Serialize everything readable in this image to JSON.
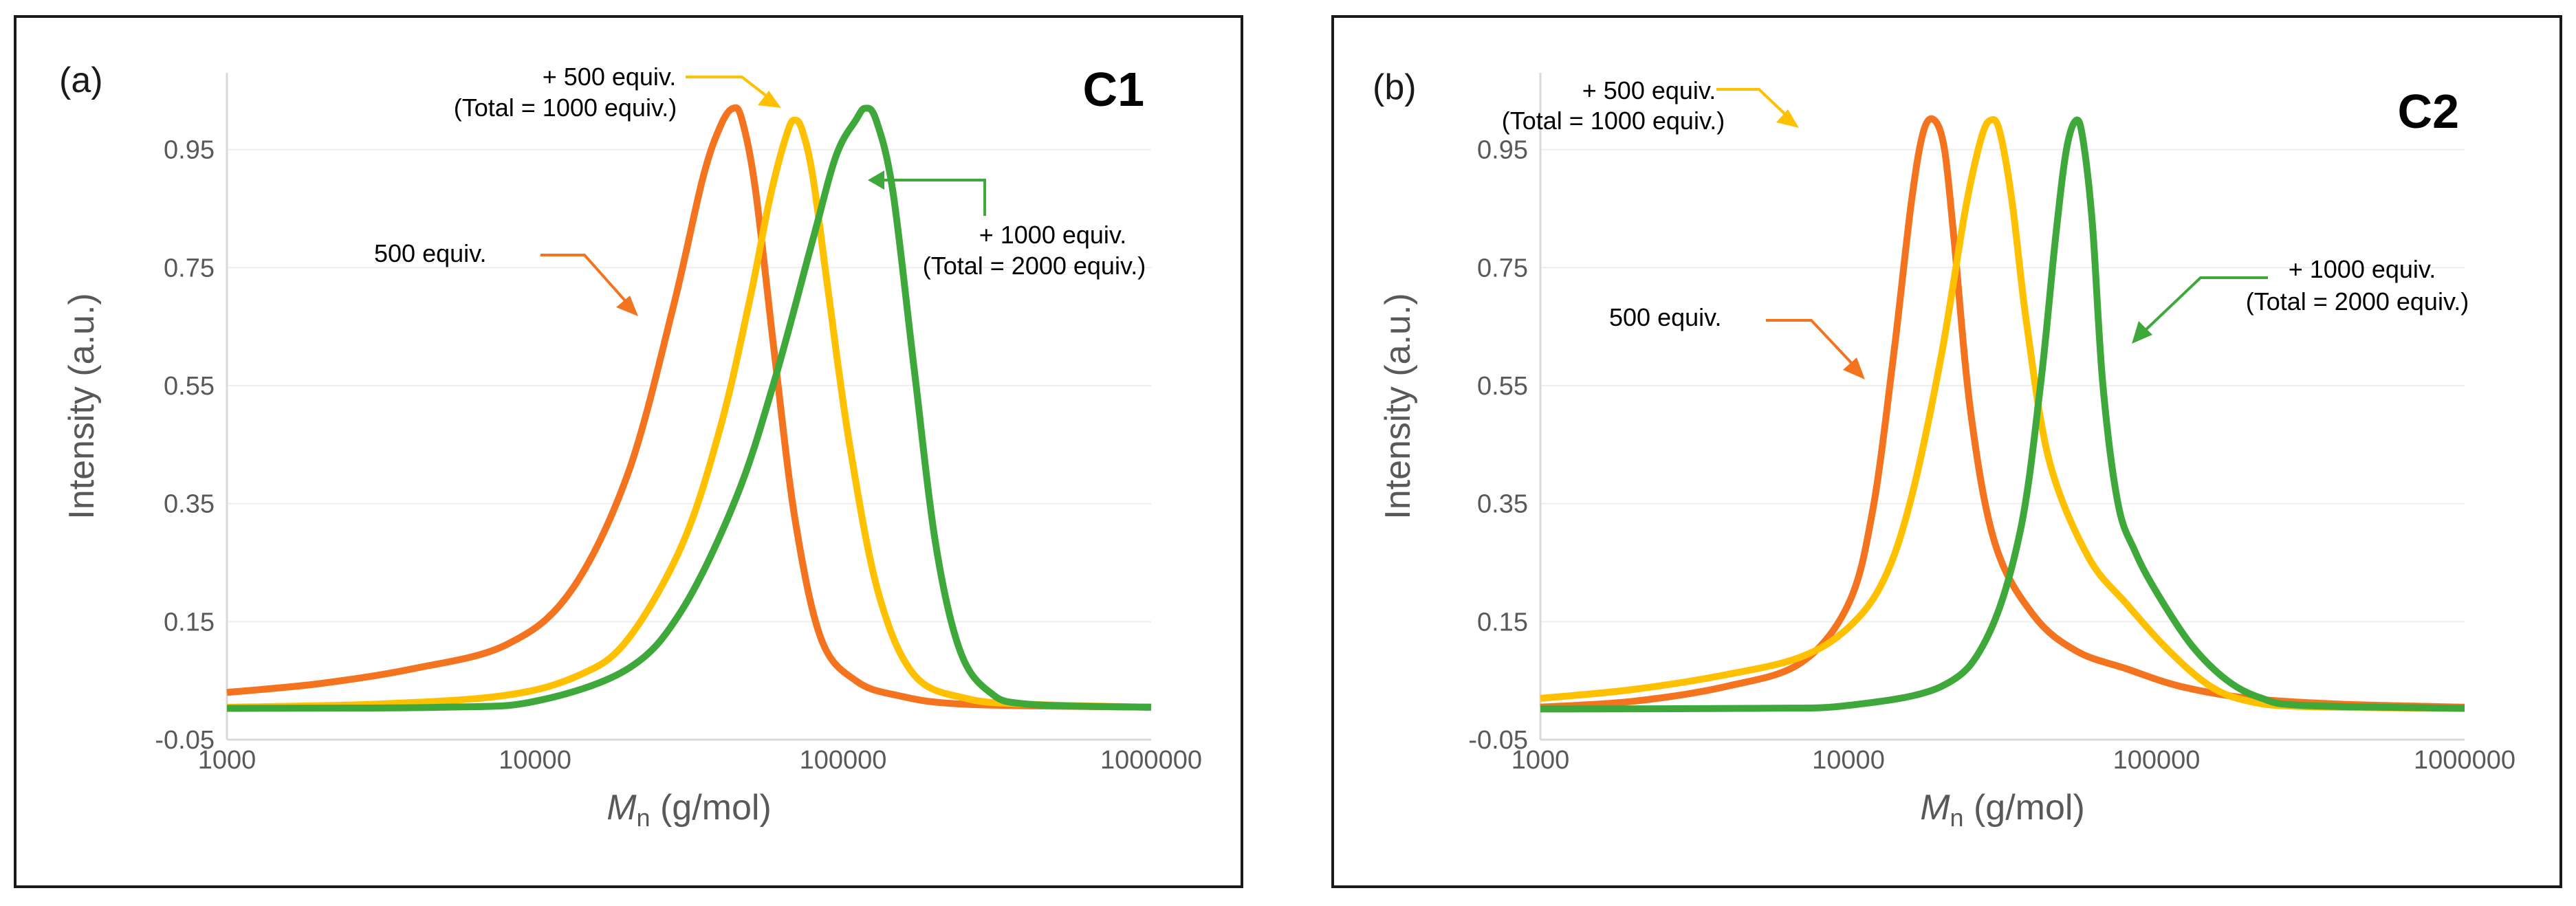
{
  "chart_data": [
    {
      "type": "line",
      "panel_label": "(a)",
      "series_tag": "C1",
      "xlabel_main": "M",
      "xlabel_sub": "n",
      "xlabel_unit": " (g/mol)",
      "ylabel": "Intensity (a.u.)",
      "x_scale": "log",
      "xlim": [
        1000,
        1000000
      ],
      "ylim": [
        -0.05,
        1.08
      ],
      "x_ticks": [
        "1000",
        "10000",
        "100000",
        "1000000"
      ],
      "y_ticks": [
        "-0.05",
        "0.15",
        "0.35",
        "0.55",
        "0.75",
        "0.95"
      ],
      "series": [
        {
          "name": "500 equiv.",
          "color": "#F4731F",
          "x": [
            1000,
            2000,
            4000,
            8000,
            13000,
            20000,
            28000,
            35000,
            40000,
            44000,
            47000,
            52000,
            60000,
            70000,
            85000,
            110000,
            150000,
            250000,
            1000000
          ],
          "y": [
            0.03,
            0.045,
            0.07,
            0.11,
            0.2,
            0.4,
            0.68,
            0.9,
            0.99,
            1.02,
            1.0,
            0.88,
            0.6,
            0.32,
            0.12,
            0.05,
            0.025,
            0.01,
            0.005
          ]
        },
        {
          "name": "+ 500 equiv. (Total = 1000 equiv.)",
          "color": "#FFC000",
          "x": [
            1000,
            3000,
            8000,
            14000,
            20000,
            30000,
            40000,
            50000,
            58000,
            66000,
            70000,
            74000,
            80000,
            90000,
            105000,
            130000,
            170000,
            250000,
            400000,
            1000000
          ],
          "y": [
            0.005,
            0.01,
            0.025,
            0.06,
            0.12,
            0.28,
            0.48,
            0.7,
            0.87,
            0.98,
            1.0,
            0.98,
            0.9,
            0.7,
            0.45,
            0.2,
            0.06,
            0.02,
            0.01,
            0.005
          ]
        },
        {
          "name": "+ 1000 equiv. (Total = 2000 equiv.)",
          "color": "#3EA83A",
          "x": [
            1000,
            5000,
            10000,
            20000,
            30000,
            45000,
            60000,
            80000,
            95000,
            110000,
            118000,
            128000,
            145000,
            170000,
            200000,
            240000,
            300000,
            400000,
            1000000
          ],
          "y": [
            0.003,
            0.005,
            0.015,
            0.07,
            0.17,
            0.36,
            0.56,
            0.8,
            0.94,
            1.0,
            1.02,
            1.0,
            0.88,
            0.58,
            0.28,
            0.1,
            0.03,
            0.01,
            0.005
          ]
        }
      ],
      "annotations": {
        "orange": "500 equiv.",
        "yellow_line1": "+ 500 equiv.",
        "yellow_line2": "(Total = 1000 equiv.)",
        "green_line1": "+ 1000 equiv.",
        "green_line2": "(Total = 2000 equiv.)"
      }
    },
    {
      "type": "line",
      "panel_label": "(b)",
      "series_tag": "C2",
      "xlabel_main": "M",
      "xlabel_sub": "n",
      "xlabel_unit": " (g/mol)",
      "ylabel": "Intensity (a.u.)",
      "x_scale": "log",
      "xlim": [
        1000,
        1000000
      ],
      "ylim": [
        -0.05,
        1.08
      ],
      "x_ticks": [
        "1000",
        "10000",
        "100000",
        "1000000"
      ],
      "y_ticks": [
        "-0.05",
        "0.15",
        "0.35",
        "0.55",
        "0.75",
        "0.95"
      ],
      "series": [
        {
          "name": "500 equiv.",
          "color": "#F4731F",
          "x": [
            1000,
            2000,
            4000,
            7000,
            10000,
            12000,
            14000,
            16000,
            17500,
            19000,
            20500,
            22000,
            25000,
            30000,
            40000,
            55000,
            80000,
            120000,
            200000,
            400000,
            1000000
          ],
          "y": [
            0.005,
            0.015,
            0.04,
            0.08,
            0.18,
            0.34,
            0.6,
            0.86,
            0.98,
            1.0,
            0.95,
            0.8,
            0.5,
            0.28,
            0.16,
            0.1,
            0.07,
            0.04,
            0.02,
            0.01,
            0.005
          ]
        },
        {
          "name": "+ 500 equiv. (Total = 1000 equiv.)",
          "color": "#FFC000",
          "x": [
            1000,
            2000,
            4000,
            7000,
            10000,
            13000,
            16000,
            20000,
            24000,
            27000,
            29000,
            31000,
            34000,
            38000,
            45000,
            60000,
            80000,
            110000,
            150000,
            200000,
            300000,
            1000000
          ],
          "y": [
            0.02,
            0.035,
            0.06,
            0.09,
            0.14,
            0.22,
            0.36,
            0.6,
            0.85,
            0.97,
            1.0,
            0.98,
            0.86,
            0.65,
            0.42,
            0.26,
            0.18,
            0.1,
            0.04,
            0.015,
            0.006,
            0.003
          ]
        },
        {
          "name": "+ 1000 equiv. (Total = 2000 equiv.)",
          "color": "#3EA83A",
          "x": [
            1000,
            5000,
            10000,
            20000,
            28000,
            36000,
            42000,
            47000,
            51000,
            55000,
            58000,
            62000,
            67000,
            75000,
            85000,
            100000,
            130000,
            170000,
            220000,
            300000,
            1000000
          ],
          "y": [
            0.002,
            0.003,
            0.008,
            0.04,
            0.12,
            0.3,
            0.55,
            0.8,
            0.95,
            1.0,
            0.96,
            0.82,
            0.55,
            0.35,
            0.27,
            0.2,
            0.11,
            0.05,
            0.02,
            0.008,
            0.003
          ]
        }
      ],
      "annotations": {
        "orange": "500 equiv.",
        "yellow_line1": "+ 500 equiv.",
        "yellow_line2": "(Total = 1000 equiv.)",
        "green_line1": "+ 1000 equiv.",
        "green_line2": "(Total = 2000 equiv.)"
      }
    }
  ]
}
